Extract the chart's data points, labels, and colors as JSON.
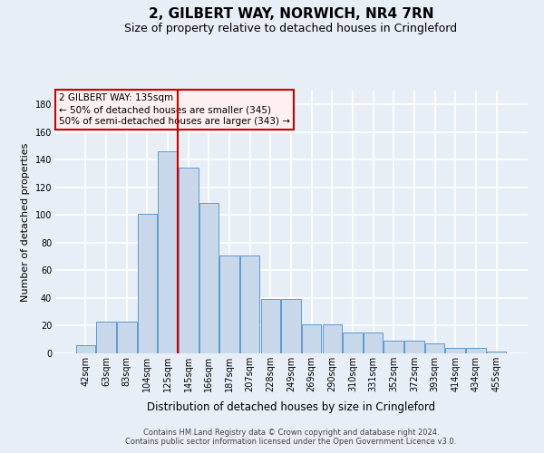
{
  "title": "2, GILBERT WAY, NORWICH, NR4 7RN",
  "subtitle": "Size of property relative to detached houses in Cringleford",
  "xlabel": "Distribution of detached houses by size in Cringleford",
  "ylabel": "Number of detached properties",
  "categories": [
    "42sqm",
    "63sqm",
    "83sqm",
    "104sqm",
    "125sqm",
    "145sqm",
    "166sqm",
    "187sqm",
    "207sqm",
    "228sqm",
    "249sqm",
    "269sqm",
    "290sqm",
    "310sqm",
    "331sqm",
    "352sqm",
    "372sqm",
    "393sqm",
    "414sqm",
    "434sqm",
    "455sqm"
  ],
  "bar_heights": [
    6,
    23,
    23,
    101,
    146,
    134,
    109,
    71,
    71,
    39,
    39,
    21,
    21,
    15,
    15,
    9,
    9,
    7,
    4,
    4,
    1
  ],
  "bar_color": "#c8d8ea",
  "bar_edge_color": "#5b9bd5",
  "red_line_x": 4.5,
  "ylim": [
    0,
    190
  ],
  "yticks": [
    0,
    20,
    40,
    60,
    80,
    100,
    120,
    140,
    160,
    180
  ],
  "annotation_line1": "2 GILBERT WAY: 135sqm",
  "annotation_line2": "← 50% of detached houses are smaller (345)",
  "annotation_line3": "50% of semi-detached houses are larger (343) →",
  "footer1": "Contains HM Land Registry data © Crown copyright and database right 2024.",
  "footer2": "Contains public sector information licensed under the Open Government Licence v3.0.",
  "bg_color": "#e8eef6",
  "grid_color": "#ffffff",
  "title_fontsize": 11,
  "subtitle_fontsize": 9,
  "xlabel_fontsize": 8.5,
  "ylabel_fontsize": 8,
  "tick_fontsize": 7,
  "annotation_fontsize": 7.5,
  "footer_fontsize": 6
}
